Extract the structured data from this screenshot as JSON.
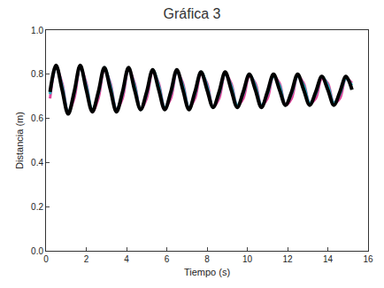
{
  "chart_data": {
    "type": "line",
    "title": "Gráfica 3",
    "x_label": "Tiempo (s)",
    "y_label": "Distancia (m)",
    "x": [
      0.2,
      0.5,
      0.8,
      1.1,
      1.4,
      1.7,
      2.0,
      2.3,
      2.6,
      2.9,
      3.2,
      3.5,
      3.8,
      4.1,
      4.4,
      4.7,
      5.0,
      5.3,
      5.6,
      5.9,
      6.2,
      6.5,
      6.8,
      7.1,
      7.4,
      7.7,
      8.0,
      8.3,
      8.6,
      8.9,
      9.2,
      9.5,
      9.8,
      10.1,
      10.4,
      10.7,
      11.0,
      11.3,
      11.6,
      11.9,
      12.2,
      12.5,
      12.8,
      13.1,
      13.4,
      13.7,
      14.0,
      14.3,
      14.6,
      14.9,
      15.2
    ],
    "series": [
      {
        "color": "#e0449a",
        "line_style": "solid",
        "values": [
          0.69,
          0.83,
          0.76,
          0.63,
          0.69,
          0.83,
          0.76,
          0.63,
          0.69,
          0.82,
          0.76,
          0.64,
          0.69,
          0.82,
          0.76,
          0.64,
          0.69,
          0.81,
          0.76,
          0.65,
          0.69,
          0.81,
          0.76,
          0.65,
          0.69,
          0.8,
          0.76,
          0.65,
          0.69,
          0.8,
          0.76,
          0.66,
          0.69,
          0.79,
          0.76,
          0.66,
          0.69,
          0.79,
          0.76,
          0.66,
          0.69,
          0.79,
          0.76,
          0.67,
          0.69,
          0.78,
          0.76,
          0.67,
          0.69,
          0.78,
          0.76
        ]
      },
      {
        "color": "#22b8c8",
        "line_style": "solid",
        "values": [
          0.71,
          0.83,
          0.75,
          0.63,
          0.71,
          0.83,
          0.75,
          0.64,
          0.71,
          0.83,
          0.75,
          0.64,
          0.71,
          0.82,
          0.75,
          0.64,
          0.71,
          0.82,
          0.75,
          0.65,
          0.71,
          0.81,
          0.75,
          0.65,
          0.71,
          0.81,
          0.75,
          0.65,
          0.71,
          0.8,
          0.75,
          0.66,
          0.71,
          0.8,
          0.75,
          0.66,
          0.71,
          0.79,
          0.75,
          0.66,
          0.71,
          0.79,
          0.75,
          0.67,
          0.71,
          0.79,
          0.75,
          0.67,
          0.71,
          0.78,
          0.75
        ]
      },
      {
        "color": "#000000",
        "line_style": "solid",
        "values": [
          0.72,
          0.84,
          0.73,
          0.62,
          0.72,
          0.84,
          0.73,
          0.63,
          0.72,
          0.83,
          0.73,
          0.63,
          0.72,
          0.83,
          0.73,
          0.64,
          0.72,
          0.82,
          0.73,
          0.64,
          0.72,
          0.82,
          0.73,
          0.64,
          0.72,
          0.81,
          0.73,
          0.65,
          0.72,
          0.81,
          0.73,
          0.65,
          0.72,
          0.8,
          0.73,
          0.65,
          0.72,
          0.8,
          0.73,
          0.66,
          0.72,
          0.8,
          0.73,
          0.66,
          0.72,
          0.79,
          0.73,
          0.66,
          0.72,
          0.79,
          0.73
        ]
      }
    ],
    "xlim": [
      0,
      16
    ],
    "xticks": [
      0,
      2,
      4,
      6,
      8,
      10,
      12,
      14,
      16
    ],
    "ylim": [
      0,
      1
    ],
    "yticks": [
      {
        "value": 0,
        "label": "0.0"
      },
      0.2,
      0.4,
      0.6,
      0.8,
      {
        "value": 1,
        "label": "1.0"
      }
    ],
    "grid": false
  }
}
